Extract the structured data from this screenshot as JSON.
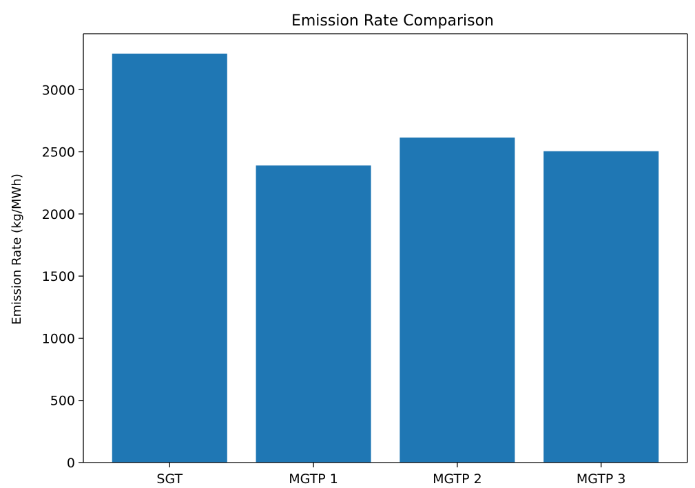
{
  "chart_data": {
    "type": "bar",
    "title": "Emission Rate Comparison",
    "xlabel": "",
    "ylabel": "Emission Rate (kg/MWh)",
    "categories": [
      "SGT",
      "MGTP 1",
      "MGTP 2",
      "MGTP 3"
    ],
    "values": [
      3290,
      2390,
      2615,
      2505
    ],
    "ylim": [
      0,
      3450
    ],
    "yticks": [
      0,
      500,
      1000,
      1500,
      2000,
      2500,
      3000
    ],
    "bar_color": "#1f77b4",
    "grid": false,
    "legend": "none"
  }
}
